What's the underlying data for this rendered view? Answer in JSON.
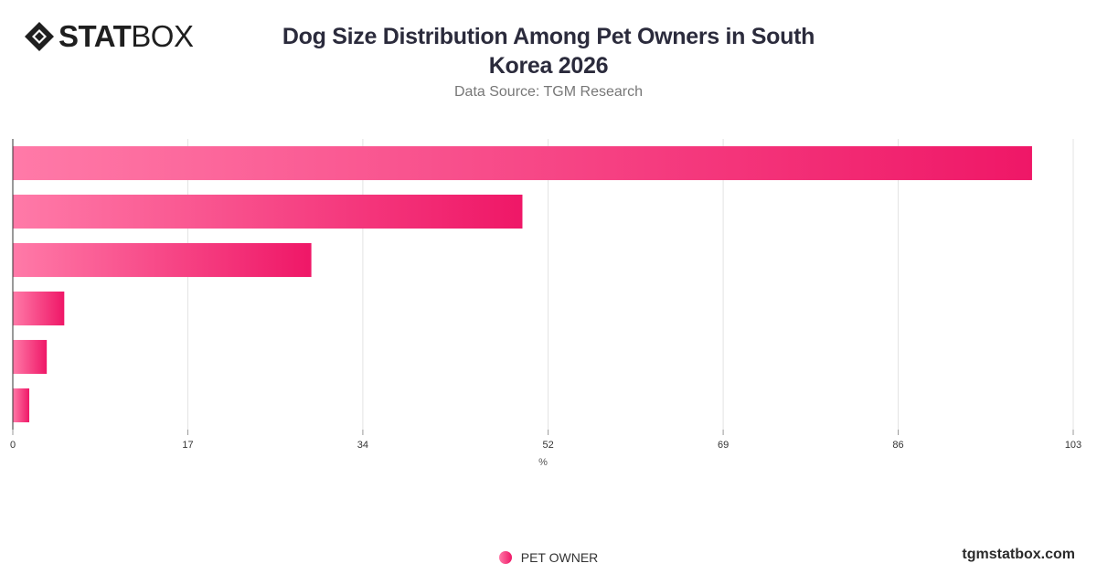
{
  "brand": {
    "name_bold": "STAT",
    "name_light": "BOX"
  },
  "header": {
    "title": "Dog Size Distribution Among Pet Owners in South Korea 2026",
    "subtitle": "Data Source: TGM Research"
  },
  "chart_data": {
    "type": "bar",
    "orientation": "horizontal",
    "title": "Dog Size Distribution Among Pet Owners in South Korea 2026",
    "xlabel": "%",
    "ylabel": "",
    "xlim": [
      0,
      103
    ],
    "ticks": [
      0,
      17,
      34,
      52,
      69,
      86,
      103
    ],
    "categories": [
      "",
      "",
      "",
      "",
      "",
      ""
    ],
    "series": [
      {
        "name": "PET OWNER",
        "values": [
          99,
          49.5,
          29,
          5,
          3.3,
          1.6
        ]
      }
    ],
    "grid": true,
    "legend": "bottom-center",
    "colors": {
      "bar_start": "#ff7aa8",
      "bar_end": "#ef1767",
      "grid": "#e3e3e3",
      "axis": "#333333",
      "tick_text": "#333333"
    }
  },
  "legend": {
    "label": "PET OWNER"
  },
  "footer": {
    "site": "tgmstatbox.com"
  }
}
